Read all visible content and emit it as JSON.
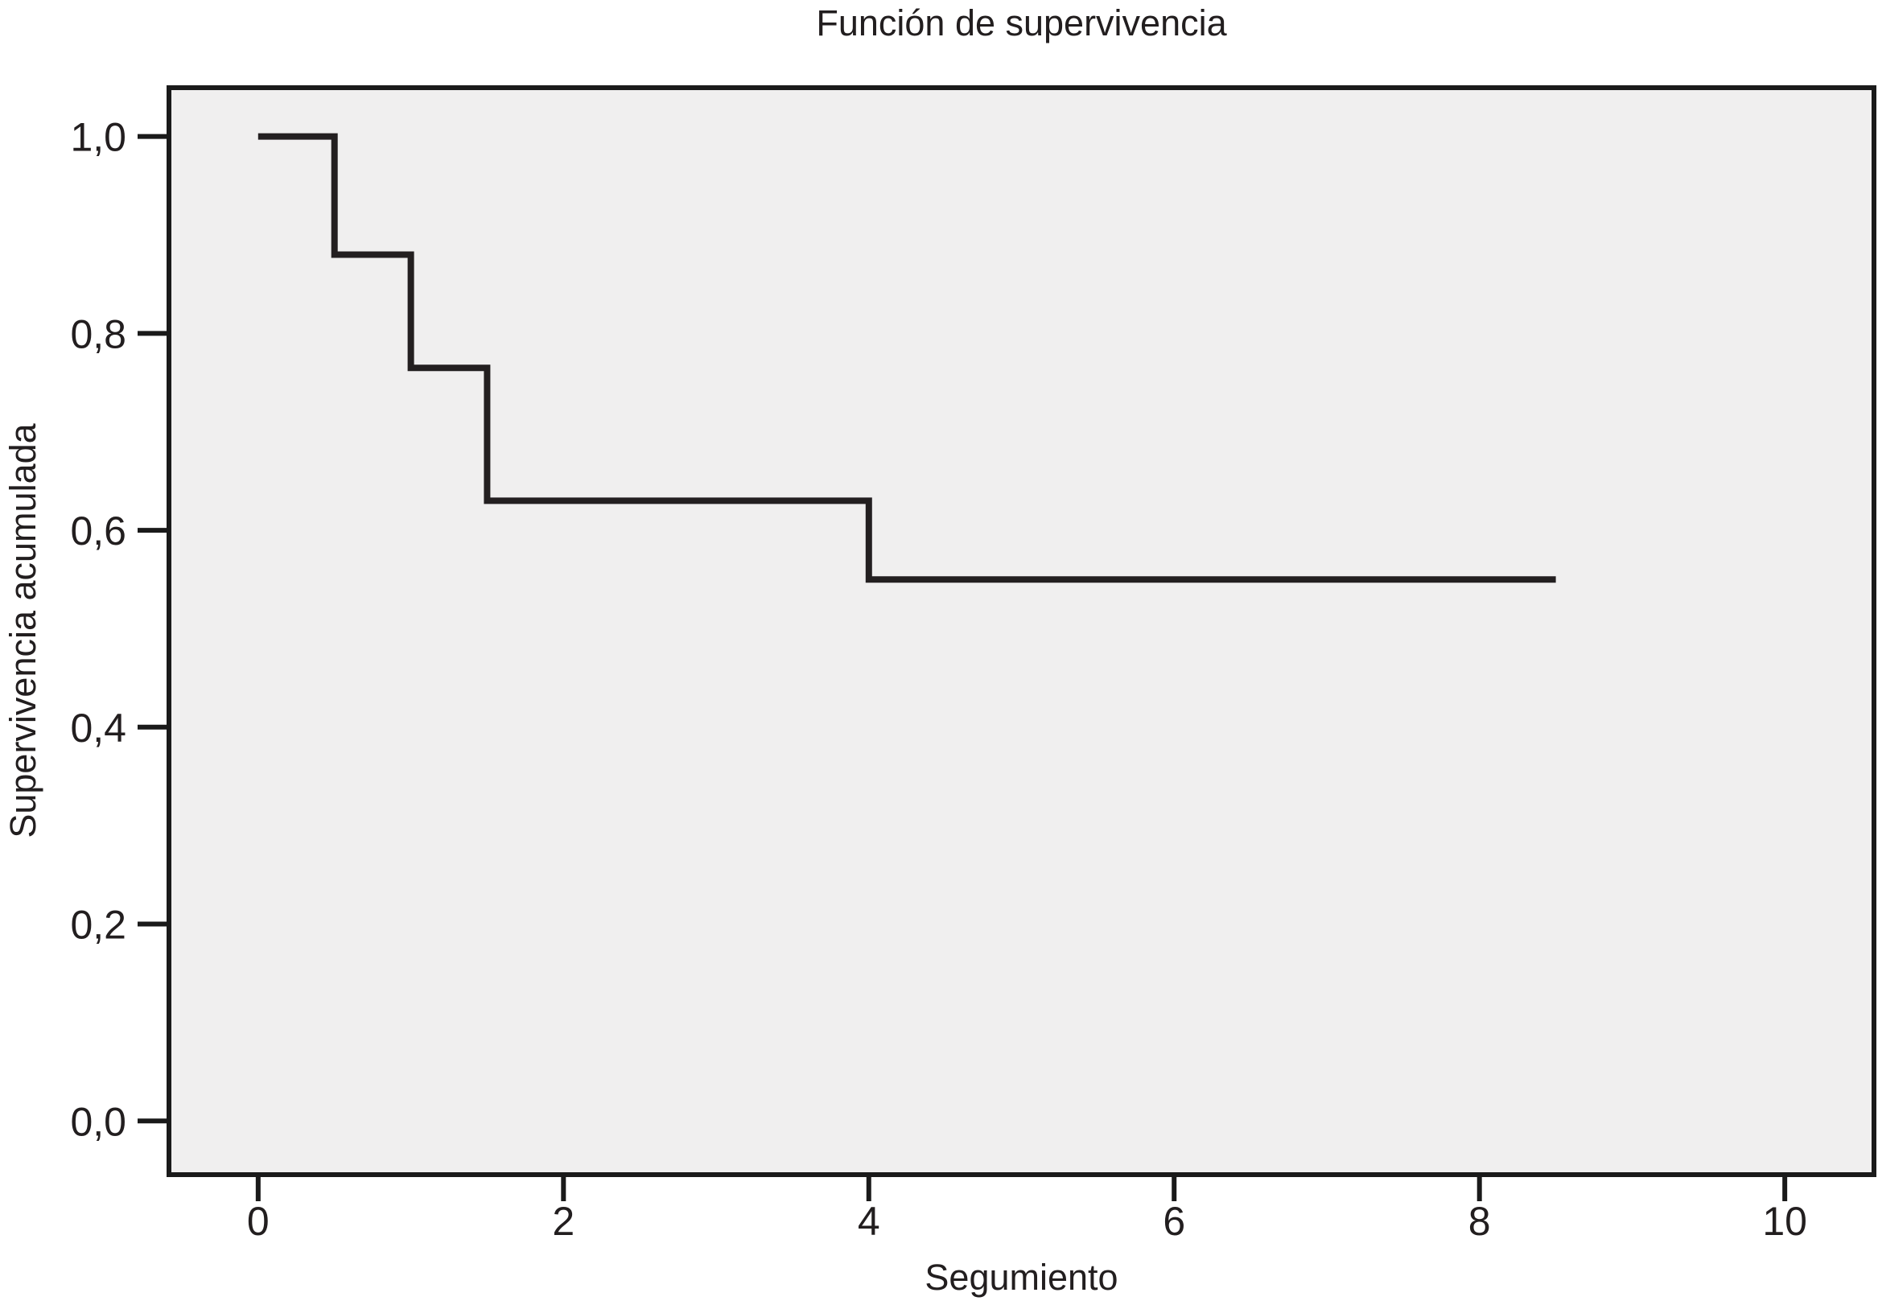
{
  "page": {
    "background": "#ffffff"
  },
  "chart_data": {
    "type": "line",
    "subtype": "kaplan-meier-step",
    "title": "Función de supervivencia",
    "xlabel": "Segumiento",
    "ylabel": "Supervivencia acumulada",
    "x_tick_values": [
      0,
      2,
      4,
      6,
      8,
      10
    ],
    "x_tick_labels": [
      "0",
      "2",
      "4",
      "6",
      "8",
      "10"
    ],
    "y_tick_values": [
      1.0,
      0.8,
      0.6,
      0.4,
      0.2,
      0.0
    ],
    "y_tick_labels": [
      "1,0",
      "0,8",
      "0,6",
      "0,4",
      "0,2",
      "0,0"
    ],
    "xlim": [
      -0.6,
      10.6
    ],
    "ylim": [
      -0.057,
      1.052
    ],
    "grid": false,
    "legend_position": null,
    "series": [
      {
        "name": "Función de supervivencia",
        "points": [
          [
            0,
            1.0
          ],
          [
            0.5,
            1.0
          ],
          [
            0.5,
            0.88
          ],
          [
            1.0,
            0.88
          ],
          [
            1.0,
            0.765
          ],
          [
            1.5,
            0.765
          ],
          [
            1.5,
            0.63
          ],
          [
            4.0,
            0.63
          ],
          [
            4.0,
            0.55
          ],
          [
            8.5,
            0.55
          ]
        ]
      }
    ],
    "colors": {
      "line": "#231f20",
      "plot_background": "#f0efef",
      "frame": "#1a1a1a",
      "text": "#221e1f"
    }
  }
}
